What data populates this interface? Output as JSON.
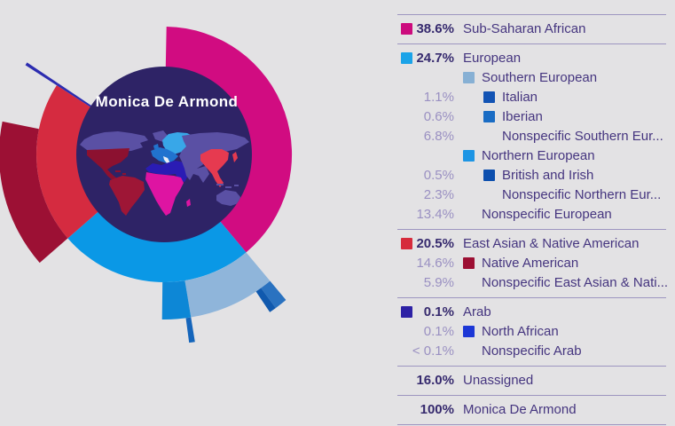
{
  "background_color": "#e3e2e4",
  "chart": {
    "center_label": "Monica De Armond",
    "circle_color": "#2e2366",
    "title_color": "#ffffff"
  },
  "chart_data": {
    "type": "sunburst",
    "title": "Monica De Armond",
    "unit": "percent",
    "rings": "level 1 = broad ancestry, level 2 = regional, level 3 = population",
    "segments": [
      {
        "label": "Sub-Saharan African",
        "level": 1,
        "start_pct": 0.3,
        "sweep_pct": 38.6,
        "color": "#d10c81"
      },
      {
        "label": "European",
        "level": 1,
        "start_pct": 38.9,
        "sweep_pct": 24.7,
        "color": "#0a98e6"
      },
      {
        "label": "Southern European",
        "level": 2,
        "start_pct": 38.9,
        "sweep_pct": 8.5,
        "color": "#8fb5da"
      },
      {
        "label": "Italian",
        "level": 3,
        "start_pct": 38.9,
        "sweep_pct": 1.1,
        "color": "#2a72c0"
      },
      {
        "label": "Iberian",
        "level": 3,
        "start_pct": 40.0,
        "sweep_pct": 0.6,
        "color": "#1059ae"
      },
      {
        "label": "Northern European",
        "level": 2,
        "start_pct": 47.4,
        "sweep_pct": 2.8,
        "color": "#0d87d6"
      },
      {
        "label": "British and Irish",
        "level": 3,
        "start_pct": 47.4,
        "sweep_pct": 0.5,
        "color": "#1565bb"
      },
      {
        "label": "East Asian & Native American",
        "level": 1,
        "start_pct": 63.6,
        "sweep_pct": 20.5,
        "color": "#d52b40"
      },
      {
        "label": "Native American",
        "level": 2,
        "start_pct": 63.6,
        "sweep_pct": 14.6,
        "color": "#9c1034"
      },
      {
        "label": "Arab",
        "level": 1,
        "start_pct": 84.1,
        "sweep_pct": 0.1,
        "color": "#2c2cb0",
        "min_deg": 1.1
      },
      {
        "label": "North African",
        "level": 2,
        "start_pct": 84.1,
        "sweep_pct": 0.1,
        "color": "#2c2cb0",
        "min_deg": 1.1
      },
      {
        "label": "Unassigned",
        "level": 1,
        "start_pct": 84.2,
        "sweep_pct": 16.0,
        "color": null
      }
    ],
    "total": {
      "label": "Monica De Armond",
      "pct": 100
    }
  },
  "legend": {
    "groups": [
      {
        "rows": [
          {
            "pct": "38.6%",
            "label": "Sub-Saharan African",
            "swatch": "#cc0b7d",
            "level": 1,
            "main": true
          }
        ]
      },
      {
        "rows": [
          {
            "pct": "24.7%",
            "label": "European",
            "swatch": "#1ba3e8",
            "level": 1,
            "main": true
          },
          {
            "pct": "",
            "label": "Southern European",
            "swatch": "#87b0d4",
            "level": 2
          },
          {
            "pct": "1.1%",
            "label": "Italian",
            "swatch": "#1253b4",
            "level": 3
          },
          {
            "pct": "0.6%",
            "label": "Iberian",
            "swatch": "#1a6cc4",
            "level": 3
          },
          {
            "pct": "6.8%",
            "label": "Nonspecific Southern Eur...",
            "swatch": null,
            "level": 3
          },
          {
            "pct": "",
            "label": "Northern European",
            "swatch": "#1d95e4",
            "level": 2
          },
          {
            "pct": "0.5%",
            "label": "British and Irish",
            "swatch": "#0d4fae",
            "level": 3
          },
          {
            "pct": "2.3%",
            "label": "Nonspecific Northern Eur...",
            "swatch": null,
            "level": 3
          },
          {
            "pct": "13.4%",
            "label": "Nonspecific European",
            "swatch": null,
            "level": 2
          }
        ]
      },
      {
        "rows": [
          {
            "pct": "20.5%",
            "label": "East Asian & Native American",
            "swatch": "#d62b3c",
            "level": 1,
            "main": true
          },
          {
            "pct": "14.6%",
            "label": "Native American",
            "swatch": "#9c0f33",
            "level": 2
          },
          {
            "pct": "5.9%",
            "label": "Nonspecific East Asian & Nati...",
            "swatch": null,
            "level": 2
          }
        ]
      },
      {
        "rows": [
          {
            "pct": "0.1%",
            "label": "Arab",
            "swatch": "#2d21a5",
            "level": 1,
            "main": true
          },
          {
            "pct": "0.1%",
            "label": "North African",
            "swatch": "#1c37d6",
            "level": 2
          },
          {
            "pct": "< 0.1%",
            "label": "Nonspecific Arab",
            "swatch": null,
            "level": 2
          }
        ]
      },
      {
        "rows": [
          {
            "pct": "16.0%",
            "label": "Unassigned",
            "swatch": null,
            "level": 1,
            "main": true
          }
        ]
      },
      {
        "rows": [
          {
            "pct": "100%",
            "label": "Monica De Armond",
            "swatch": null,
            "level": 1,
            "main": true
          }
        ]
      }
    ]
  }
}
